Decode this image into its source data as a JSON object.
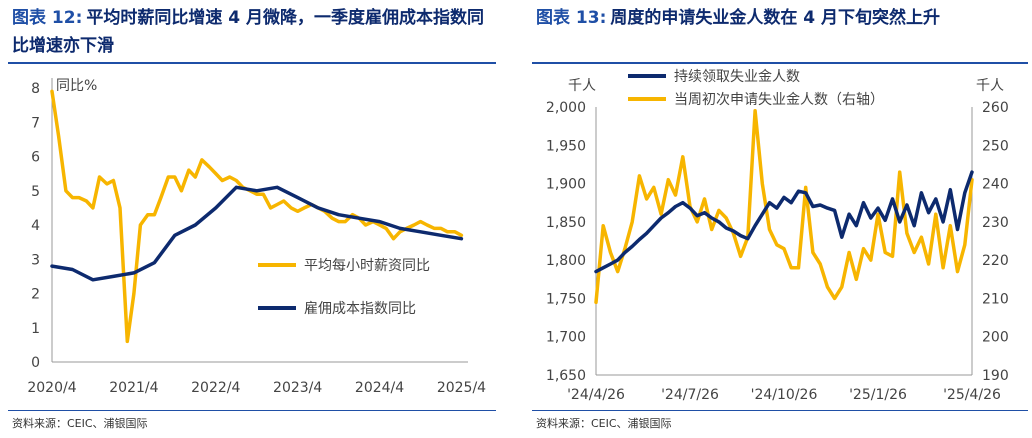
{
  "left_panel": {
    "figure_label": "图表 12:",
    "title": "平均时薪同比增速 4 月微降，一季度雇佣成本指数同比增速亦下滑",
    "source": "资料来源：CEIC、浦银国际"
  },
  "right_panel": {
    "figure_label": "图表 13:",
    "title": "周度的申请失业金人数在 4 月下旬突然上升",
    "source": "资料来源：CEIC、浦银国际"
  },
  "colors": {
    "navy": "#0d2a6e",
    "gold": "#f7b500",
    "accent": "#1f4fa6"
  },
  "chart_data": [
    {
      "type": "line",
      "ylabel": "同比%",
      "ylim": [
        0,
        8
      ],
      "yticks": [
        "0",
        "1",
        "2",
        "3",
        "4",
        "5",
        "6",
        "7",
        "8"
      ],
      "xlim": [
        2020.25,
        2025.33
      ],
      "xticks": [
        {
          "value": 2020.25,
          "label": "2020/4"
        },
        {
          "value": 2021.25,
          "label": "2021/4"
        },
        {
          "value": 2022.25,
          "label": "2022/4"
        },
        {
          "value": 2023.25,
          "label": "2023/4"
        },
        {
          "value": 2024.25,
          "label": "2024/4"
        },
        {
          "value": 2025.25,
          "label": "2025/4"
        }
      ],
      "legend": "right",
      "series": [
        {
          "name": "平均每小时薪资同比",
          "color": "#f7b500",
          "x": [
            2020.25,
            2020.33,
            2020.42,
            2020.5,
            2020.58,
            2020.67,
            2020.75,
            2020.83,
            2020.92,
            2021.0,
            2021.08,
            2021.17,
            2021.25,
            2021.33,
            2021.42,
            2021.5,
            2021.58,
            2021.67,
            2021.75,
            2021.83,
            2021.92,
            2022.0,
            2022.08,
            2022.17,
            2022.25,
            2022.33,
            2022.42,
            2022.5,
            2022.58,
            2022.67,
            2022.75,
            2022.83,
            2022.92,
            2023.0,
            2023.08,
            2023.17,
            2023.25,
            2023.33,
            2023.42,
            2023.5,
            2023.58,
            2023.67,
            2023.75,
            2023.83,
            2023.92,
            2024.0,
            2024.08,
            2024.17,
            2024.25,
            2024.33,
            2024.42,
            2024.5,
            2024.58,
            2024.67,
            2024.75,
            2024.83,
            2024.92,
            2025.0,
            2025.08,
            2025.17,
            2025.25
          ],
          "y": [
            7.9,
            6.6,
            5.0,
            4.8,
            4.8,
            4.7,
            4.5,
            5.4,
            5.2,
            5.3,
            4.5,
            0.6,
            2.0,
            4.0,
            4.3,
            4.3,
            4.8,
            5.4,
            5.4,
            5.0,
            5.6,
            5.4,
            5.9,
            5.7,
            5.5,
            5.3,
            5.4,
            5.3,
            5.1,
            5.0,
            4.9,
            4.9,
            4.5,
            4.6,
            4.7,
            4.5,
            4.4,
            4.5,
            4.6,
            4.5,
            4.4,
            4.2,
            4.1,
            4.1,
            4.3,
            4.2,
            4.0,
            4.1,
            4.0,
            3.9,
            3.6,
            3.8,
            3.9,
            4.0,
            4.1,
            4.0,
            3.9,
            3.9,
            3.8,
            3.8,
            3.7
          ]
        },
        {
          "name": "雇佣成本指数同比",
          "color": "#0d2a6e",
          "x": [
            2020.25,
            2020.5,
            2020.75,
            2021.0,
            2021.25,
            2021.5,
            2021.75,
            2022.0,
            2022.25,
            2022.5,
            2022.75,
            2023.0,
            2023.25,
            2023.5,
            2023.75,
            2024.0,
            2024.25,
            2024.5,
            2024.75,
            2025.0,
            2025.25
          ],
          "y": [
            2.8,
            2.7,
            2.4,
            2.5,
            2.6,
            2.9,
            3.7,
            4.0,
            4.5,
            5.1,
            5.0,
            5.1,
            4.8,
            4.5,
            4.3,
            4.2,
            4.1,
            3.9,
            3.8,
            3.7,
            3.6
          ]
        }
      ]
    },
    {
      "type": "line",
      "ylabel": "千人",
      "ylabel_right": "千人",
      "ylim": [
        1650,
        2000
      ],
      "yticks": [
        "1,650",
        "1,700",
        "1,750",
        "1,800",
        "1,850",
        "1,900",
        "1,950",
        "2,000"
      ],
      "ylim_right": [
        190,
        260
      ],
      "yticks_right": [
        "190",
        "200",
        "210",
        "220",
        "230",
        "240",
        "250",
        "260"
      ],
      "xlim": [
        0,
        52
      ],
      "xticks": [
        {
          "value": 0,
          "label": "'24/4/26"
        },
        {
          "value": 13,
          "label": "'24/7/26"
        },
        {
          "value": 26,
          "label": "'24/10/26"
        },
        {
          "value": 39,
          "label": "'25/1/26"
        },
        {
          "value": 52,
          "label": "'25/4/26"
        }
      ],
      "legend": "top-left",
      "series": [
        {
          "name": "持续领取失业金人数",
          "axis": "left",
          "color": "#0d2a6e",
          "x": [
            0,
            1,
            2,
            3,
            4,
            5,
            6,
            7,
            8,
            9,
            10,
            11,
            12,
            13,
            14,
            15,
            16,
            17,
            18,
            19,
            20,
            21,
            22,
            23,
            24,
            25,
            26,
            27,
            28,
            29,
            30,
            31,
            32,
            33,
            34,
            35,
            36,
            37,
            38,
            39,
            40,
            41,
            42,
            43,
            44,
            45,
            46,
            47,
            48,
            49,
            50,
            51,
            52
          ],
          "y": [
            1785,
            1790,
            1795,
            1800,
            1810,
            1818,
            1827,
            1835,
            1845,
            1855,
            1862,
            1870,
            1875,
            1868,
            1858,
            1862,
            1855,
            1850,
            1842,
            1838,
            1832,
            1828,
            1845,
            1860,
            1875,
            1868,
            1882,
            1875,
            1890,
            1888,
            1870,
            1872,
            1868,
            1865,
            1830,
            1860,
            1845,
            1875,
            1855,
            1868,
            1852,
            1880,
            1850,
            1872,
            1845,
            1888,
            1862,
            1880,
            1850,
            1892,
            1840,
            1888,
            1915
          ]
        },
        {
          "name": "当周初次申请失业金人数（右轴）",
          "axis": "right",
          "color": "#f7b500",
          "x": [
            0,
            1,
            2,
            3,
            4,
            5,
            6,
            7,
            8,
            9,
            10,
            11,
            12,
            13,
            14,
            15,
            16,
            17,
            18,
            19,
            20,
            21,
            22,
            23,
            24,
            25,
            26,
            27,
            28,
            29,
            30,
            31,
            32,
            33,
            34,
            35,
            36,
            37,
            38,
            39,
            40,
            41,
            42,
            43,
            44,
            45,
            46,
            47,
            48,
            49,
            50,
            51,
            52
          ],
          "y": [
            209,
            229,
            222,
            217,
            223,
            230,
            242,
            236,
            239,
            232,
            241,
            237,
            247,
            234,
            230,
            236,
            228,
            233,
            231,
            227,
            221,
            226,
            259,
            240,
            228,
            224,
            223,
            218,
            218,
            239,
            222,
            219,
            213,
            210,
            213,
            222,
            215,
            223,
            220,
            232,
            222,
            221,
            243,
            227,
            222,
            226,
            219,
            232,
            218,
            229,
            217,
            224,
            241
          ]
        }
      ]
    }
  ]
}
